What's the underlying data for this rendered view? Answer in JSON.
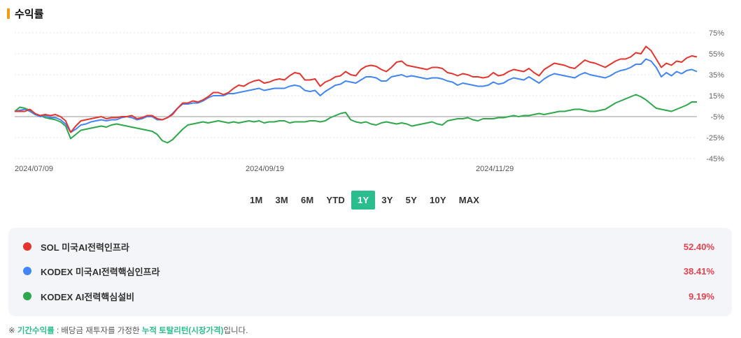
{
  "section": {
    "title": "수익률"
  },
  "chart_data": {
    "type": "line",
    "yticks": [
      "75%",
      "55%",
      "35%",
      "15%",
      "-5%",
      "-25%",
      "-45%"
    ],
    "ylim": [
      -45,
      75
    ],
    "xticks": [
      "2024/07/09",
      "2024/09/19",
      "2024/11/29"
    ],
    "grid": "horizontal dotted",
    "series": [
      {
        "name": "SOL 미국AI전력인프라",
        "color": "#e3352d",
        "values": [
          0,
          0,
          0,
          2,
          -2,
          -4,
          -3,
          -4,
          -3,
          -5,
          -9,
          -20,
          -14,
          -9,
          -8,
          -7,
          -6,
          -5,
          -7,
          -6,
          -6,
          -5,
          -5,
          -4,
          -7,
          -6,
          -4,
          -4,
          -7,
          -8,
          -6,
          -3,
          3,
          8,
          8,
          10,
          9,
          11,
          14,
          18,
          18,
          16,
          18,
          22,
          25,
          24,
          27,
          29,
          30,
          27,
          28,
          30,
          31,
          30,
          34,
          37,
          36,
          30,
          30,
          31,
          24,
          28,
          30,
          33,
          34,
          38,
          35,
          34,
          40,
          43,
          44,
          43,
          40,
          38,
          42,
          47,
          48,
          44,
          43,
          42,
          41,
          40,
          42,
          42,
          41,
          37,
          36,
          34,
          36,
          35,
          33,
          33,
          32,
          33,
          37,
          34,
          35,
          38,
          40,
          39,
          38,
          41,
          37,
          34,
          40,
          43,
          46,
          45,
          44,
          42,
          41,
          45,
          49,
          47,
          46,
          44,
          42,
          45,
          48,
          50,
          50,
          52,
          56,
          55,
          62,
          58,
          50,
          42,
          46,
          44,
          48,
          47,
          51,
          53,
          52
        ]
      },
      {
        "name": "KODEX 미국AI전력핵심인프라",
        "color": "#4285f4",
        "values": [
          0,
          1,
          2,
          0,
          -3,
          -5,
          -4,
          -6,
          -6,
          -8,
          -12,
          -20,
          -17,
          -13,
          -12,
          -10,
          -9,
          -8,
          -9,
          -8,
          -8,
          -6,
          -5,
          -6,
          -8,
          -7,
          -5,
          -5,
          -8,
          -8,
          -6,
          -2,
          3,
          7,
          7,
          8,
          8,
          10,
          13,
          15,
          15,
          15,
          17,
          17,
          18,
          19,
          20,
          21,
          22,
          20,
          21,
          22,
          22,
          22,
          24,
          25,
          24,
          20,
          19,
          20,
          15,
          19,
          22,
          25,
          26,
          29,
          28,
          27,
          30,
          33,
          33,
          32,
          29,
          29,
          33,
          34,
          35,
          33,
          34,
          33,
          32,
          31,
          32,
          32,
          31,
          29,
          28,
          25,
          27,
          26,
          25,
          24,
          24,
          25,
          28,
          26,
          27,
          30,
          32,
          31,
          30,
          33,
          30,
          27,
          31,
          34,
          36,
          35,
          34,
          33,
          32,
          35,
          37,
          35,
          34,
          33,
          32,
          34,
          37,
          39,
          40,
          42,
          45,
          45,
          50,
          48,
          42,
          33,
          37,
          34,
          38,
          36,
          39,
          40,
          38
        ]
      },
      {
        "name": "KODEX AI전력핵심설비",
        "color": "#2ea84a",
        "values": [
          0,
          4,
          3,
          1,
          -3,
          -4,
          -6,
          -7,
          -8,
          -10,
          -14,
          -26,
          -22,
          -18,
          -17,
          -16,
          -15,
          -14,
          -15,
          -13,
          -12,
          -13,
          -14,
          -15,
          -16,
          -17,
          -18,
          -19,
          -22,
          -28,
          -30,
          -27,
          -22,
          -17,
          -13,
          -12,
          -11,
          -10,
          -11,
          -10,
          -9,
          -10,
          -11,
          -10,
          -11,
          -10,
          -9,
          -10,
          -9,
          -11,
          -10,
          -10,
          -9,
          -9,
          -11,
          -10,
          -10,
          -10,
          -9,
          -9,
          -10,
          -9,
          -6,
          -4,
          -2,
          -1,
          -8,
          -10,
          -11,
          -10,
          -12,
          -13,
          -11,
          -10,
          -11,
          -12,
          -11,
          -12,
          -14,
          -13,
          -12,
          -11,
          -10,
          -12,
          -13,
          -9,
          -8,
          -7,
          -7,
          -6,
          -8,
          -9,
          -7,
          -7,
          -7,
          -6,
          -6,
          -5,
          -4,
          -5,
          -4,
          -4,
          -3,
          -2,
          -3,
          -2,
          -1,
          0,
          0,
          1,
          2,
          2,
          1,
          0,
          0,
          1,
          2,
          5,
          8,
          10,
          12,
          14,
          16,
          14,
          11,
          7,
          3,
          2,
          1,
          0,
          2,
          4,
          6,
          9,
          9
        ]
      }
    ]
  },
  "period_tabs": [
    {
      "label": "1M",
      "active": false
    },
    {
      "label": "3M",
      "active": false
    },
    {
      "label": "6M",
      "active": false
    },
    {
      "label": "YTD",
      "active": false
    },
    {
      "label": "1Y",
      "active": true
    },
    {
      "label": "3Y",
      "active": false
    },
    {
      "label": "5Y",
      "active": false
    },
    {
      "label": "10Y",
      "active": false
    },
    {
      "label": "MAX",
      "active": false
    }
  ],
  "legend": [
    {
      "name": "SOL 미국AI전력인프라",
      "value": "52.40%",
      "color": "#e3352d"
    },
    {
      "name": "KODEX 미국AI전력핵심인프라",
      "value": "38.41%",
      "color": "#4285f4"
    },
    {
      "name": "KODEX AI전력핵심설비",
      "value": "9.19%",
      "color": "#2ea84a"
    }
  ],
  "footnote": {
    "prefix": "※ ",
    "term": "기간수익률",
    "middle": " : 배당금 재투자를 가정한 ",
    "term2": "누적 토탈리턴(시장가격)",
    "suffix": "입니다."
  }
}
